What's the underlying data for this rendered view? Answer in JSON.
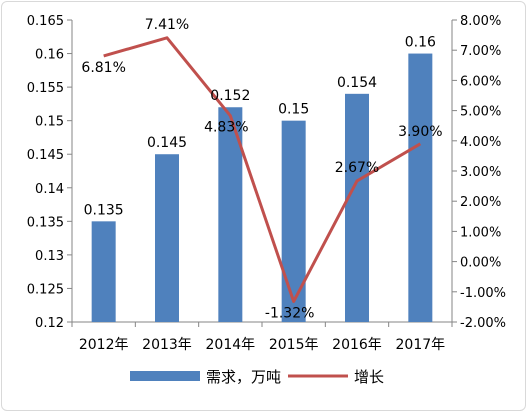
{
  "chart_data": {
    "type": "bar",
    "title": "",
    "categories": [
      "2012年",
      "2013年",
      "2014年",
      "2015年",
      "2016年",
      "2017年"
    ],
    "series": [
      {
        "name": "需求，万吨",
        "type": "bar",
        "axis": "left",
        "values": [
          0.135,
          0.145,
          0.152,
          0.15,
          0.154,
          0.16
        ],
        "labels": [
          "0.135",
          "0.145",
          "0.152",
          "0.15",
          "0.154",
          "0.16"
        ],
        "color": "#4f81bd"
      },
      {
        "name": "增长",
        "type": "line",
        "axis": "right",
        "values": [
          6.81,
          7.41,
          4.83,
          -1.32,
          2.67,
          3.9
        ],
        "labels": [
          "6.81%",
          "7.41%",
          "4.83%",
          "-1.32%",
          "2.67%",
          "3.90%"
        ],
        "color": "#c0504d"
      }
    ],
    "y_left": {
      "ylim": [
        0.12,
        0.165
      ],
      "ticks": [
        "0.165",
        "0.16",
        "0.155",
        "0.15",
        "0.145",
        "0.14",
        "0.135",
        "0.13",
        "0.125",
        "0.12"
      ]
    },
    "y_right": {
      "ylim": [
        -2,
        8
      ],
      "ticks": [
        "8.00%",
        "7.00%",
        "6.00%",
        "5.00%",
        "4.00%",
        "3.00%",
        "2.00%",
        "1.00%",
        "0.00%",
        "-1.00%",
        "-2.00%"
      ]
    },
    "grid": false,
    "legend": "bottom"
  }
}
